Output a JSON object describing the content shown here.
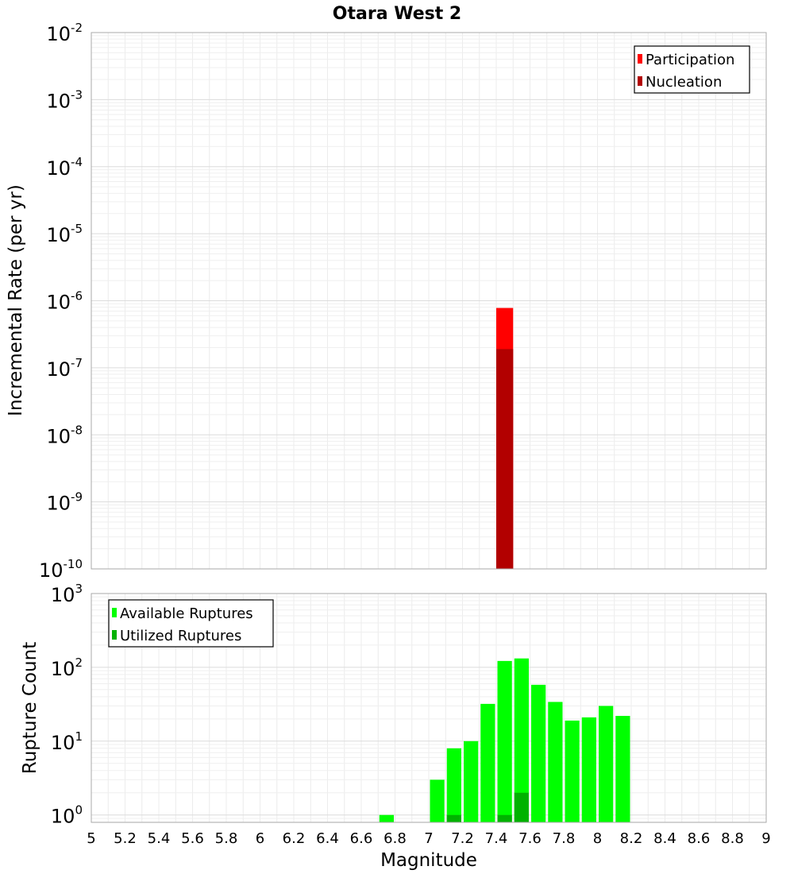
{
  "chart_data": {
    "title": "Otara West 2",
    "xlabel": "Magnitude",
    "xlim": [
      5,
      9
    ],
    "xticks": [
      "5",
      "5.2",
      "5.4",
      "5.6",
      "5.8",
      "6",
      "6.2",
      "6.4",
      "6.6",
      "6.8",
      "7",
      "7.2",
      "7.4",
      "7.6",
      "7.8",
      "8",
      "8.2",
      "8.4",
      "8.6",
      "8.8",
      "9"
    ],
    "grid": true,
    "bin_width": 0.1,
    "panels": [
      {
        "type": "bar",
        "ylabel": "Incremental Rate (per yr)",
        "yscale": "log",
        "ylim_exp": [
          -10,
          -2
        ],
        "yticks": [
          {
            "base": "10",
            "exp": "-2"
          },
          {
            "base": "10",
            "exp": "-3"
          },
          {
            "base": "10",
            "exp": "-4"
          },
          {
            "base": "10",
            "exp": "-5"
          },
          {
            "base": "10",
            "exp": "-6"
          },
          {
            "base": "10",
            "exp": "-7"
          },
          {
            "base": "10",
            "exp": "-8"
          },
          {
            "base": "10",
            "exp": "-9"
          },
          {
            "base": "10",
            "exp": "-10"
          }
        ],
        "legend_position": "top-right",
        "series": [
          {
            "name": "Participation",
            "color": "#ff0000",
            "points": [
              {
                "x": 7.45,
                "y": 7.8e-07
              }
            ]
          },
          {
            "name": "Nucleation",
            "color": "#b20000",
            "points": [
              {
                "x": 7.45,
                "y": 1.9e-07
              }
            ]
          }
        ]
      },
      {
        "type": "bar",
        "ylabel": "Rupture Count",
        "yscale": "log",
        "ylim_exp": [
          -0.1,
          3
        ],
        "yticks": [
          {
            "base": "10",
            "exp": "3"
          },
          {
            "base": "10",
            "exp": "2"
          },
          {
            "base": "10",
            "exp": "1"
          },
          {
            "base": "10",
            "exp": "0"
          }
        ],
        "legend_position": "top-left",
        "series": [
          {
            "name": "Available Ruptures",
            "color": "#00ff00",
            "points": [
              {
                "x": 6.75,
                "y": 1
              },
              {
                "x": 7.05,
                "y": 3
              },
              {
                "x": 7.15,
                "y": 8
              },
              {
                "x": 7.25,
                "y": 10
              },
              {
                "x": 7.35,
                "y": 32
              },
              {
                "x": 7.45,
                "y": 122
              },
              {
                "x": 7.55,
                "y": 132
              },
              {
                "x": 7.65,
                "y": 58
              },
              {
                "x": 7.75,
                "y": 34
              },
              {
                "x": 7.85,
                "y": 19
              },
              {
                "x": 7.95,
                "y": 21
              },
              {
                "x": 8.05,
                "y": 30
              },
              {
                "x": 8.15,
                "y": 22
              }
            ]
          },
          {
            "name": "Utilized Ruptures",
            "color": "#00b200",
            "points": [
              {
                "x": 7.15,
                "y": 1
              },
              {
                "x": 7.45,
                "y": 1
              },
              {
                "x": 7.55,
                "y": 2
              }
            ]
          }
        ]
      }
    ]
  }
}
